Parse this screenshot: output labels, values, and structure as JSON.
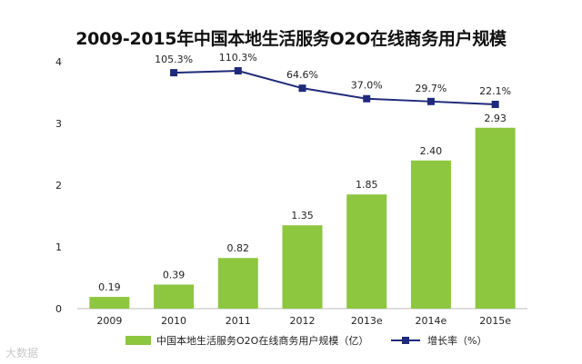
{
  "chart_data": {
    "type": "bar",
    "title": "2009-2015年中国本地生活服务O2O在线商务用户规模",
    "categories": [
      "2009",
      "2010",
      "2011",
      "2012",
      "2013e",
      "2014e",
      "2015e"
    ],
    "ylim": [
      0,
      4
    ],
    "yticks": [
      "0",
      "1",
      "2",
      "3",
      "4"
    ],
    "series": [
      {
        "name": "中国本地生活服务O2O在线商务用户规模（亿）",
        "type": "bar",
        "color": "#8dc63f",
        "values": [
          0.19,
          0.39,
          0.82,
          1.35,
          1.85,
          2.4,
          2.93
        ],
        "labels": [
          "0.19",
          "0.39",
          "0.82",
          "1.35",
          "1.85",
          "2.40",
          "2.93"
        ]
      },
      {
        "name": "增长率（%）",
        "type": "line",
        "color": "#1f2a7a",
        "values": [
          null,
          105.3,
          110.3,
          64.6,
          37.0,
          29.7,
          22.1
        ],
        "labels": [
          null,
          "105.3%",
          "110.3%",
          "64.6%",
          "37.0%",
          "29.7%",
          "22.1%"
        ]
      }
    ]
  },
  "watermark": "大数据"
}
